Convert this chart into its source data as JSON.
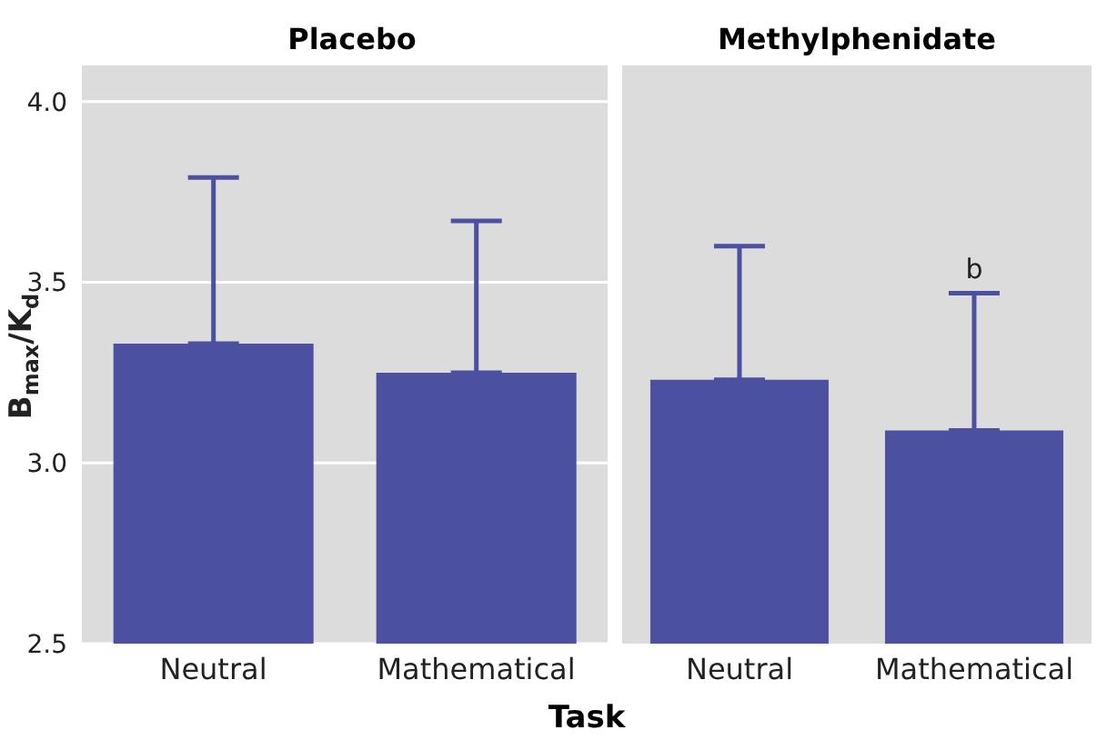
{
  "chart_data": [
    {
      "type": "bar",
      "title": "Placebo",
      "categories": [
        "Neutral",
        "Mathematical"
      ],
      "values": [
        3.33,
        3.25
      ],
      "errors": [
        [
          3.33,
          3.79
        ],
        [
          3.25,
          3.67
        ]
      ],
      "color": "#4b51a0",
      "ylabel": "B$_{max}$/K$_{d}$",
      "xlabel": "Task",
      "ylim": [
        2.5,
        4.1
      ],
      "yticks": [
        2.5,
        {
          "value": 3,
          "label": "3.0"
        },
        3.5,
        {
          "value": 4,
          "label": "4.0"
        }
      ],
      "grid": "y"
    },
    {
      "type": "bar",
      "title": "Methylphenidate",
      "categories": [
        "Neutral",
        "Mathematical"
      ],
      "values": [
        3.23,
        3.09
      ],
      "errors": [
        [
          3.23,
          3.6
        ],
        [
          3.09,
          3.47
        ]
      ],
      "color": "#4b51a0",
      "ylim": [
        2.5,
        4.1
      ],
      "yticks": [
        2.5,
        3,
        3.5,
        4
      ],
      "grid": "y",
      "tick_labels": "x",
      "annotations": [
        {
          "text": "b",
          "x": "Mathematical",
          "y": 3.47
        }
      ]
    }
  ]
}
